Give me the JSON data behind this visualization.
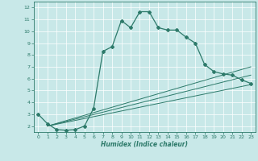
{
  "xlabel": "Humidex (Indice chaleur)",
  "bg_color": "#c8e8e8",
  "line_color": "#2d7a6a",
  "xlim": [
    -0.5,
    23.5
  ],
  "ylim": [
    1.5,
    12.5
  ],
  "xticks": [
    0,
    1,
    2,
    3,
    4,
    5,
    6,
    7,
    8,
    9,
    10,
    11,
    12,
    13,
    14,
    15,
    16,
    17,
    18,
    19,
    20,
    21,
    22,
    23
  ],
  "yticks": [
    2,
    3,
    4,
    5,
    6,
    7,
    8,
    9,
    10,
    11,
    12
  ],
  "series1_x": [
    0,
    1,
    2,
    3,
    4,
    5,
    6,
    7,
    8,
    9,
    10,
    11,
    12,
    13,
    14,
    15,
    16,
    17,
    18,
    19,
    20,
    21,
    22,
    23
  ],
  "series1_y": [
    3.0,
    2.2,
    1.7,
    1.65,
    1.7,
    2.0,
    3.5,
    8.3,
    8.7,
    10.9,
    10.3,
    11.65,
    11.65,
    10.3,
    10.1,
    10.1,
    9.5,
    9.0,
    7.2,
    6.6,
    6.4,
    6.3,
    5.9,
    5.6
  ],
  "series2_x": [
    0,
    5,
    23
  ],
  "series2_y": [
    2.0,
    2.0,
    7.0
  ],
  "series3_x": [
    0,
    5,
    23
  ],
  "series3_y": [
    2.0,
    2.0,
    6.0
  ],
  "series4_x": [
    0,
    5,
    23
  ],
  "series4_y": [
    2.0,
    2.0,
    5.4
  ]
}
